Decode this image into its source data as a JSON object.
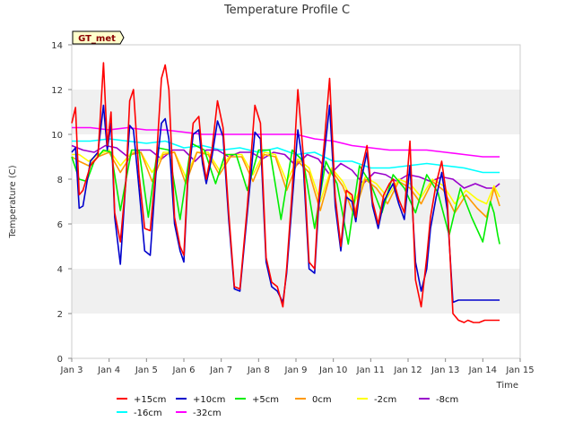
{
  "chart_data": {
    "type": "line",
    "title": "Temperature Profile C",
    "xlabel": "Time",
    "ylabel": "Temperature (C)",
    "badge": "GT_met",
    "xlim": [
      3,
      15
    ],
    "ylim": [
      0,
      14
    ],
    "x_ticks": [
      3,
      4,
      5,
      6,
      7,
      8,
      9,
      10,
      11,
      12,
      13,
      14,
      15
    ],
    "x_tick_labels": [
      "Jan 3",
      "Jan 4",
      "Jan 5",
      "Jan 6",
      "Jan 7",
      "Jan 8",
      "Jan 9",
      "Jan 10",
      "Jan 11",
      "Jan 12",
      "Jan 13",
      "Jan 14",
      "Jan 15"
    ],
    "y_ticks": [
      0,
      2,
      4,
      6,
      8,
      10,
      12,
      14
    ],
    "y_tick_labels": [
      "0",
      "2",
      "4",
      "6",
      "8",
      "10",
      "12",
      "14"
    ],
    "grid": "horizontal bands",
    "legend_position": "bottom",
    "series": [
      {
        "name": "+15cm",
        "color": "#ff0000",
        "x": [
          3.0,
          3.1,
          3.2,
          3.3,
          3.5,
          3.7,
          3.85,
          3.95,
          4.05,
          4.15,
          4.3,
          4.45,
          4.55,
          4.65,
          4.8,
          4.95,
          5.1,
          5.25,
          5.4,
          5.5,
          5.6,
          5.75,
          5.9,
          6.0,
          6.1,
          6.25,
          6.4,
          6.5,
          6.6,
          6.75,
          6.9,
          7.05,
          7.2,
          7.35,
          7.5,
          7.7,
          7.9,
          8.05,
          8.2,
          8.35,
          8.5,
          8.65,
          8.75,
          8.9,
          9.05,
          9.2,
          9.35,
          9.5,
          9.6,
          9.75,
          9.9,
          10.05,
          10.2,
          10.35,
          10.5,
          10.6,
          10.75,
          10.9,
          11.05,
          11.2,
          11.35,
          11.5,
          11.6,
          11.75,
          11.9,
          12.05,
          12.2,
          12.35,
          12.5,
          12.6,
          12.75,
          12.9,
          13.05,
          13.2,
          13.35,
          13.5,
          13.6,
          13.75,
          13.9,
          14.05,
          14.2,
          14.35,
          14.45
        ],
        "y": [
          10.5,
          11.2,
          7.3,
          7.5,
          8.6,
          9.0,
          13.2,
          9.5,
          11.0,
          6.5,
          5.2,
          7.9,
          11.5,
          12.0,
          8.2,
          5.8,
          5.7,
          8.5,
          12.5,
          13.1,
          12.0,
          6.3,
          5.0,
          4.6,
          8.0,
          10.5,
          10.8,
          9.0,
          8.0,
          9.3,
          11.5,
          10.3,
          6.5,
          3.2,
          3.1,
          6.8,
          11.3,
          10.5,
          4.5,
          3.4,
          3.2,
          2.3,
          4.0,
          7.5,
          12.0,
          9.0,
          4.3,
          4.0,
          7.0,
          9.5,
          12.5,
          7.2,
          5.0,
          7.5,
          7.3,
          6.3,
          8.4,
          9.5,
          7.0,
          6.0,
          7.3,
          7.8,
          8.0,
          7.1,
          6.5,
          9.7,
          3.5,
          2.3,
          4.5,
          6.3,
          7.8,
          8.8,
          7.0,
          2.0,
          1.7,
          1.6,
          1.7,
          1.6,
          1.6,
          1.7,
          1.7,
          1.7,
          1.7
        ]
      },
      {
        "name": "+10cm",
        "color": "#0000cc",
        "x": [
          3.0,
          3.1,
          3.2,
          3.3,
          3.5,
          3.7,
          3.85,
          3.95,
          4.05,
          4.15,
          4.3,
          4.45,
          4.55,
          4.65,
          4.8,
          4.95,
          5.1,
          5.25,
          5.4,
          5.5,
          5.6,
          5.75,
          5.9,
          6.0,
          6.1,
          6.25,
          6.4,
          6.5,
          6.6,
          6.75,
          6.9,
          7.05,
          7.2,
          7.35,
          7.5,
          7.7,
          7.9,
          8.05,
          8.2,
          8.35,
          8.5,
          8.65,
          8.75,
          8.9,
          9.05,
          9.2,
          9.35,
          9.5,
          9.6,
          9.75,
          9.9,
          10.05,
          10.2,
          10.35,
          10.5,
          10.6,
          10.75,
          10.9,
          11.05,
          11.2,
          11.35,
          11.5,
          11.6,
          11.75,
          11.9,
          12.05,
          12.2,
          12.35,
          12.5,
          12.6,
          12.75,
          12.9,
          13.05,
          13.2,
          13.35,
          13.5,
          13.6,
          13.75,
          13.9,
          14.05,
          14.2,
          14.35,
          14.45
        ],
        "y": [
          9.2,
          9.4,
          6.7,
          6.8,
          8.8,
          9.2,
          11.3,
          9.3,
          10.5,
          6.3,
          4.2,
          8.0,
          10.4,
          10.2,
          7.6,
          4.8,
          4.6,
          8.2,
          10.5,
          10.7,
          9.8,
          6.0,
          4.8,
          4.3,
          7.8,
          10.0,
          10.2,
          8.7,
          7.8,
          9.0,
          10.6,
          9.9,
          6.2,
          3.1,
          3.0,
          6.5,
          10.1,
          9.8,
          4.3,
          3.2,
          3.0,
          2.5,
          3.8,
          7.0,
          10.2,
          8.5,
          4.0,
          3.8,
          6.6,
          9.0,
          11.3,
          6.8,
          4.8,
          7.2,
          7.0,
          6.1,
          8.0,
          9.2,
          6.8,
          5.8,
          7.0,
          7.5,
          7.8,
          6.9,
          6.2,
          8.6,
          4.3,
          3.0,
          4.0,
          5.8,
          7.2,
          8.3,
          6.6,
          2.5,
          2.6,
          2.6,
          2.6,
          2.6,
          2.6,
          2.6,
          2.6,
          2.6,
          2.6
        ]
      },
      {
        "name": "+5cm",
        "color": "#00ee00",
        "x": [
          3.0,
          3.2,
          3.4,
          3.6,
          3.85,
          4.05,
          4.3,
          4.6,
          4.8,
          5.05,
          5.3,
          5.6,
          5.9,
          6.2,
          6.55,
          6.85,
          7.1,
          7.4,
          7.7,
          8.0,
          8.3,
          8.6,
          8.9,
          9.2,
          9.5,
          9.8,
          10.1,
          10.4,
          10.7,
          11.0,
          11.3,
          11.6,
          11.9,
          12.2,
          12.5,
          12.8,
          13.1,
          13.4,
          13.7,
          14.0,
          14.2,
          14.3,
          14.4,
          14.45
        ],
        "y": [
          9.0,
          8.0,
          7.9,
          8.8,
          9.3,
          9.2,
          6.6,
          9.3,
          9.3,
          6.3,
          9.4,
          9.3,
          6.2,
          9.6,
          9.3,
          7.8,
          9.1,
          9.1,
          7.5,
          9.3,
          9.3,
          6.2,
          9.3,
          8.8,
          5.8,
          8.8,
          7.8,
          5.1,
          8.6,
          7.8,
          6.5,
          8.2,
          7.6,
          6.5,
          8.2,
          7.4,
          5.5,
          7.6,
          6.3,
          5.2,
          7.0,
          6.5,
          5.5,
          5.1
        ]
      },
      {
        "name": "0cm",
        "color": "#ff9900",
        "x": [
          3.0,
          3.2,
          3.45,
          3.7,
          4.0,
          4.3,
          4.6,
          4.85,
          5.15,
          5.45,
          5.75,
          6.05,
          6.35,
          6.65,
          6.95,
          7.25,
          7.55,
          7.85,
          8.15,
          8.45,
          8.75,
          9.05,
          9.35,
          9.65,
          9.95,
          10.25,
          10.55,
          10.85,
          11.15,
          11.45,
          11.75,
          12.05,
          12.35,
          12.65,
          12.95,
          13.25,
          13.55,
          13.85,
          14.1,
          14.3,
          14.45
        ],
        "y": [
          9.0,
          8.8,
          8.6,
          9.0,
          9.2,
          8.3,
          9.1,
          9.2,
          7.9,
          9.1,
          9.2,
          7.8,
          9.2,
          9.1,
          8.2,
          9.0,
          9.0,
          7.9,
          9.1,
          9.0,
          7.5,
          8.8,
          8.3,
          6.6,
          8.4,
          7.7,
          6.4,
          8.0,
          7.6,
          6.9,
          7.9,
          7.6,
          6.9,
          7.9,
          7.5,
          6.5,
          7.3,
          6.7,
          6.3,
          7.6,
          6.8
        ]
      },
      {
        "name": "-2cm",
        "color": "#ffff00",
        "x": [
          3.0,
          3.2,
          3.45,
          3.7,
          4.0,
          4.3,
          4.6,
          4.85,
          5.15,
          5.45,
          5.75,
          6.05,
          6.35,
          6.65,
          6.95,
          7.25,
          7.55,
          7.85,
          8.15,
          8.45,
          8.75,
          9.05,
          9.35,
          9.65,
          9.95,
          10.25,
          10.55,
          10.85,
          11.15,
          11.45,
          11.75,
          12.05,
          12.35,
          12.65,
          12.95,
          13.25,
          13.55,
          13.85,
          14.1,
          14.3,
          14.45
        ],
        "y": [
          9.1,
          9.1,
          8.8,
          9.1,
          9.3,
          8.6,
          9.2,
          9.2,
          8.3,
          9.2,
          9.2,
          8.1,
          9.2,
          9.2,
          8.4,
          9.1,
          9.1,
          8.2,
          9.2,
          9.1,
          7.9,
          8.9,
          8.5,
          7.0,
          8.5,
          7.9,
          6.9,
          8.1,
          7.8,
          7.2,
          8.0,
          7.8,
          7.2,
          8.0,
          7.7,
          6.9,
          7.5,
          7.1,
          6.9,
          7.7,
          7.2
        ]
      },
      {
        "name": "-8cm",
        "color": "#9900cc",
        "x": [
          3.0,
          3.3,
          3.6,
          3.9,
          4.2,
          4.5,
          4.8,
          5.1,
          5.4,
          5.7,
          6.0,
          6.3,
          6.6,
          6.9,
          7.2,
          7.5,
          7.8,
          8.1,
          8.4,
          8.7,
          9.0,
          9.3,
          9.6,
          9.9,
          10.2,
          10.5,
          10.8,
          11.1,
          11.4,
          11.7,
          12.0,
          12.3,
          12.6,
          12.9,
          13.2,
          13.5,
          13.8,
          14.1,
          14.3,
          14.45
        ],
        "y": [
          9.5,
          9.3,
          9.2,
          9.5,
          9.4,
          9.0,
          9.3,
          9.3,
          8.9,
          9.3,
          9.3,
          8.8,
          9.3,
          9.3,
          9.0,
          9.2,
          9.2,
          8.9,
          9.2,
          9.1,
          8.6,
          9.1,
          8.9,
          8.2,
          8.7,
          8.4,
          7.8,
          8.3,
          8.2,
          7.9,
          8.2,
          8.1,
          7.9,
          8.1,
          8.0,
          7.6,
          7.8,
          7.6,
          7.6,
          7.8
        ]
      },
      {
        "name": "-16cm",
        "color": "#00ffff",
        "x": [
          3.0,
          3.5,
          4.0,
          4.5,
          5.0,
          5.5,
          6.0,
          6.5,
          7.0,
          7.5,
          8.0,
          8.5,
          9.0,
          9.5,
          10.0,
          10.5,
          11.0,
          11.5,
          12.0,
          12.5,
          13.0,
          13.5,
          14.0,
          14.2,
          14.45
        ],
        "y": [
          9.7,
          9.7,
          9.8,
          9.7,
          9.6,
          9.7,
          9.4,
          9.5,
          9.3,
          9.4,
          9.2,
          9.4,
          9.1,
          9.2,
          8.8,
          8.8,
          8.5,
          8.5,
          8.6,
          8.7,
          8.6,
          8.5,
          8.3,
          8.3,
          8.3
        ]
      },
      {
        "name": "-32cm",
        "color": "#ff00ff",
        "x": [
          3.0,
          3.5,
          4.0,
          4.5,
          5.0,
          5.5,
          6.0,
          6.5,
          7.0,
          7.5,
          8.0,
          8.5,
          9.0,
          9.5,
          10.0,
          10.5,
          11.0,
          11.5,
          12.0,
          12.5,
          13.0,
          13.5,
          14.0,
          14.2,
          14.45
        ],
        "y": [
          10.3,
          10.3,
          10.2,
          10.3,
          10.2,
          10.2,
          10.1,
          10.0,
          10.0,
          10.0,
          10.0,
          10.0,
          10.0,
          9.8,
          9.7,
          9.5,
          9.4,
          9.3,
          9.3,
          9.3,
          9.2,
          9.1,
          9.0,
          9.0,
          9.0
        ]
      }
    ]
  }
}
